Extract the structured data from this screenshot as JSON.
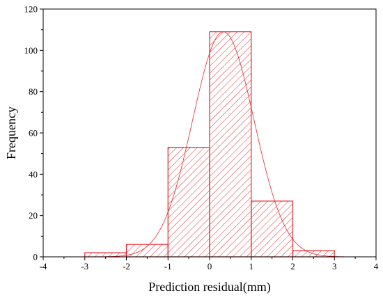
{
  "chart_data": {
    "type": "bar",
    "subtype": "histogram-with-fitted-curve",
    "xlabel": "Prediction residual(mm)",
    "ylabel": "Frequency",
    "xlim": [
      -4,
      4
    ],
    "ylim": [
      0,
      120
    ],
    "xticks": [
      -4,
      -3,
      -2,
      -1,
      0,
      1,
      2,
      3,
      4
    ],
    "yticks": [
      0,
      20,
      40,
      60,
      80,
      100,
      120
    ],
    "grid": false,
    "bins": [
      {
        "x0": -3,
        "x1": -2,
        "value": 2
      },
      {
        "x0": -2,
        "x1": -1,
        "value": 6
      },
      {
        "x0": -1,
        "x1": 0,
        "value": 53
      },
      {
        "x0": 0,
        "x1": 1,
        "value": 109
      },
      {
        "x0": 1,
        "x1": 2,
        "value": 27
      },
      {
        "x0": 2,
        "x1": 3,
        "value": 3
      }
    ],
    "fit_curve": {
      "type": "normal",
      "mean": 0.33,
      "sd": 0.74,
      "peak": 109
    },
    "colors": {
      "bar_edge": "#e8252a",
      "hatch": "#e8252a",
      "curve": "#e8252a",
      "axis": "#000000"
    }
  }
}
